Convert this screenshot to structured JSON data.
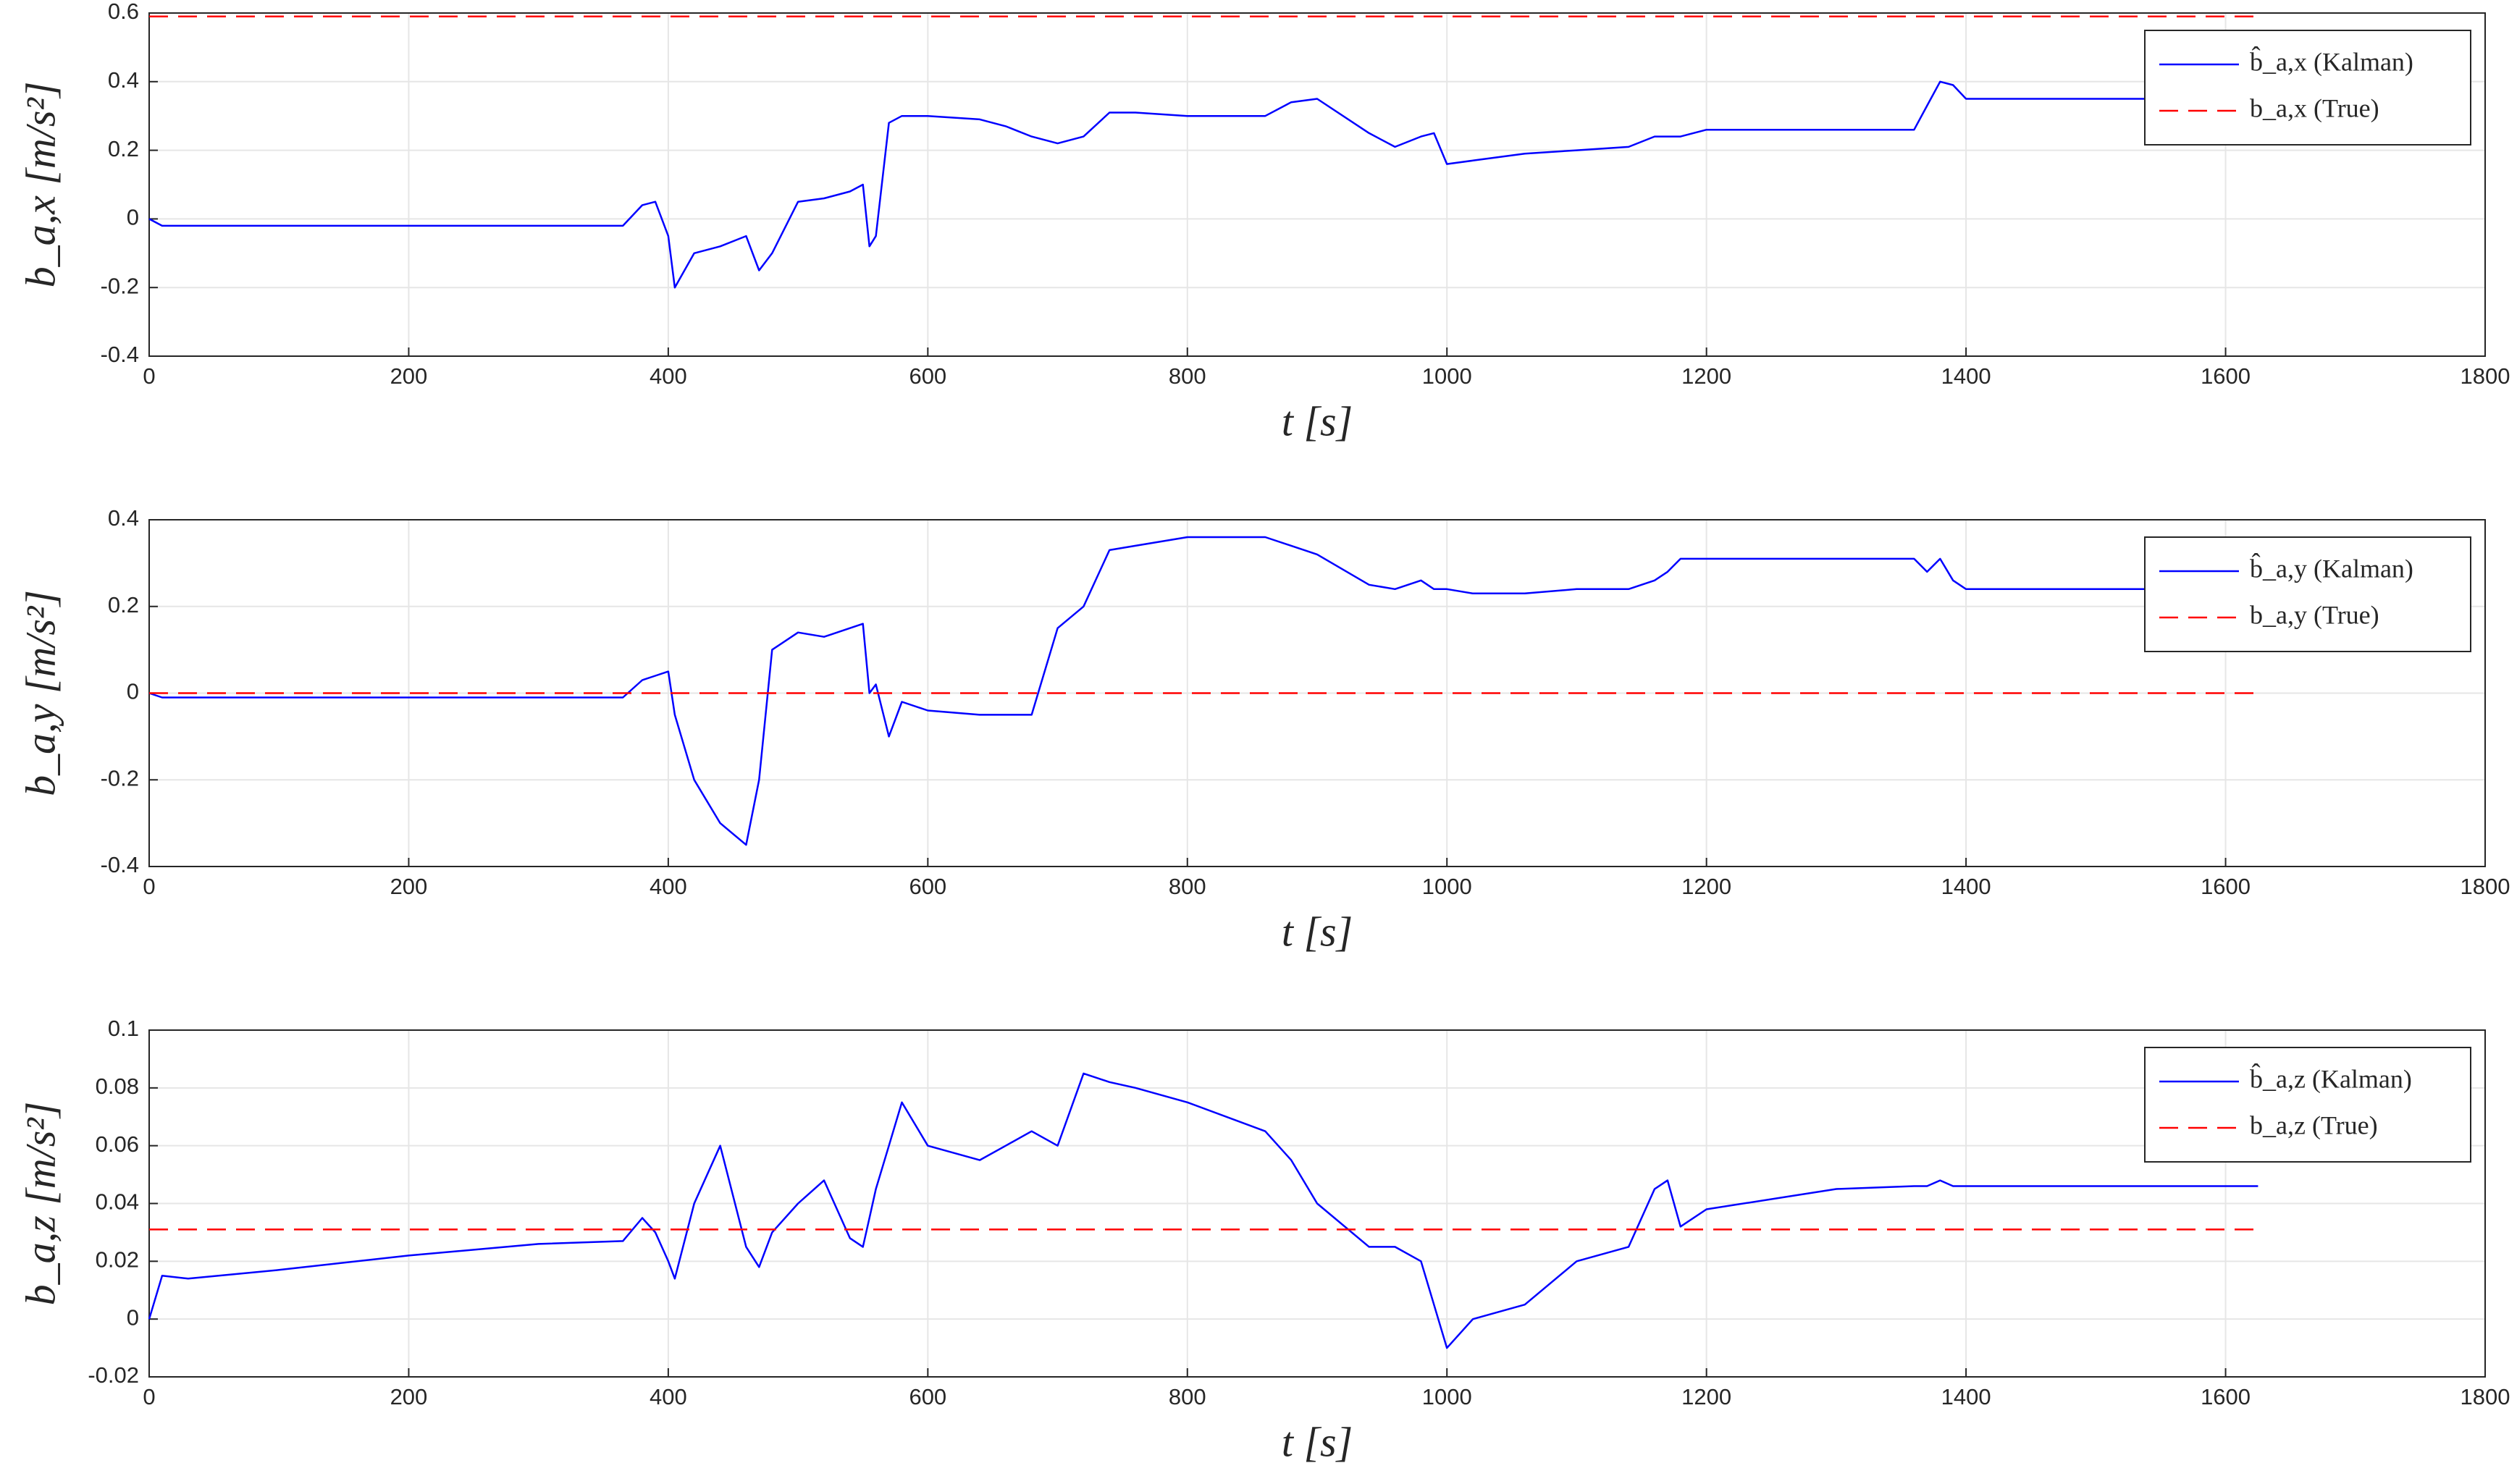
{
  "chart_data": [
    {
      "type": "line",
      "xlabel": "t [s]",
      "ylabel": "b_a,x [m/s²]",
      "xlim": [
        0,
        1800
      ],
      "xticks": [
        0,
        200,
        400,
        600,
        800,
        1000,
        1200,
        1400,
        1600,
        1800
      ],
      "ylim": [
        -0.4,
        0.6
      ],
      "yticks": [
        -0.4,
        -0.2,
        0,
        0.2,
        0.4,
        0.6
      ],
      "grid": true,
      "legend": "northeast",
      "x": [
        0,
        10,
        30,
        100,
        200,
        300,
        365,
        380,
        390,
        400,
        405,
        420,
        440,
        460,
        470,
        480,
        500,
        520,
        540,
        550,
        555,
        560,
        570,
        580,
        600,
        640,
        660,
        680,
        700,
        720,
        740,
        760,
        800,
        860,
        880,
        900,
        940,
        960,
        980,
        990,
        1000,
        1020,
        1060,
        1100,
        1140,
        1160,
        1170,
        1180,
        1200,
        1300,
        1360,
        1370,
        1380,
        1390,
        1400,
        1500,
        1625
      ],
      "series": [
        {
          "name": "b̂_a,x (Kalman)",
          "color": "#0000ff",
          "dash": false,
          "values": [
            0,
            -0.02,
            -0.02,
            -0.02,
            -0.02,
            -0.02,
            -0.02,
            0.04,
            0.05,
            -0.05,
            -0.2,
            -0.1,
            -0.08,
            -0.05,
            -0.15,
            -0.1,
            0.05,
            0.06,
            0.08,
            0.1,
            -0.08,
            -0.05,
            0.28,
            0.3,
            0.3,
            0.29,
            0.27,
            0.24,
            0.22,
            0.24,
            0.31,
            0.31,
            0.3,
            0.3,
            0.34,
            0.35,
            0.25,
            0.21,
            0.24,
            0.25,
            0.16,
            0.17,
            0.19,
            0.2,
            0.21,
            0.24,
            0.24,
            0.24,
            0.26,
            0.26,
            0.26,
            0.33,
            0.4,
            0.39,
            0.35,
            0.35,
            0.35
          ]
        },
        {
          "name": "b_a,x (True)",
          "color": "#ff0000",
          "dash": true,
          "values": [
            0.59,
            0.59,
            0.59,
            0.59,
            0.59,
            0.59,
            0.59,
            0.59,
            0.59,
            0.59,
            0.59,
            0.59,
            0.59,
            0.59,
            0.59,
            0.59,
            0.59,
            0.59,
            0.59,
            0.59,
            0.59,
            0.59,
            0.59,
            0.59,
            0.59,
            0.59,
            0.59,
            0.59,
            0.59,
            0.59,
            0.59,
            0.59,
            0.59,
            0.59,
            0.59,
            0.59,
            0.59,
            0.59,
            0.59,
            0.59,
            0.59,
            0.59,
            0.59,
            0.59,
            0.59,
            0.59,
            0.59,
            0.59,
            0.59,
            0.59,
            0.59,
            0.59,
            0.59,
            0.59,
            0.59,
            0.59,
            0.59
          ]
        }
      ]
    },
    {
      "type": "line",
      "xlabel": "t [s]",
      "ylabel": "b_a,y [m/s²]",
      "xlim": [
        0,
        1800
      ],
      "xticks": [
        0,
        200,
        400,
        600,
        800,
        1000,
        1200,
        1400,
        1600,
        1800
      ],
      "ylim": [
        -0.4,
        0.4
      ],
      "yticks": [
        -0.4,
        -0.2,
        0,
        0.2,
        0.4
      ],
      "grid": true,
      "legend": "northeast",
      "x": [
        0,
        10,
        30,
        100,
        200,
        300,
        365,
        380,
        390,
        400,
        405,
        420,
        440,
        460,
        470,
        480,
        500,
        520,
        540,
        550,
        555,
        560,
        570,
        580,
        600,
        640,
        660,
        680,
        700,
        720,
        740,
        760,
        800,
        860,
        880,
        900,
        940,
        960,
        980,
        990,
        1000,
        1020,
        1060,
        1100,
        1140,
        1160,
        1170,
        1180,
        1200,
        1300,
        1360,
        1370,
        1380,
        1390,
        1400,
        1500,
        1625
      ],
      "series": [
        {
          "name": "b̂_a,y (Kalman)",
          "color": "#0000ff",
          "dash": false,
          "values": [
            0,
            -0.01,
            -0.01,
            -0.01,
            -0.01,
            -0.01,
            -0.01,
            0.03,
            0.04,
            0.05,
            -0.05,
            -0.2,
            -0.3,
            -0.35,
            -0.2,
            0.1,
            0.14,
            0.13,
            0.15,
            0.16,
            0,
            0.02,
            -0.1,
            -0.02,
            -0.04,
            -0.05,
            -0.05,
            -0.05,
            0.15,
            0.2,
            0.33,
            0.34,
            0.36,
            0.36,
            0.34,
            0.32,
            0.25,
            0.24,
            0.26,
            0.24,
            0.24,
            0.23,
            0.23,
            0.24,
            0.24,
            0.26,
            0.28,
            0.31,
            0.31,
            0.31,
            0.31,
            0.28,
            0.31,
            0.26,
            0.24,
            0.24,
            0.24
          ]
        },
        {
          "name": "b_a,y (True)",
          "color": "#ff0000",
          "dash": true,
          "values": [
            0,
            0,
            0,
            0,
            0,
            0,
            0,
            0,
            0,
            0,
            0,
            0,
            0,
            0,
            0,
            0,
            0,
            0,
            0,
            0,
            0,
            0,
            0,
            0,
            0,
            0,
            0,
            0,
            0,
            0,
            0,
            0,
            0,
            0,
            0,
            0,
            0,
            0,
            0,
            0,
            0,
            0,
            0,
            0,
            0,
            0,
            0,
            0,
            0,
            0,
            0,
            0,
            0,
            0,
            0,
            0,
            0
          ]
        }
      ]
    },
    {
      "type": "line",
      "xlabel": "t [s]",
      "ylabel": "b_a,z [m/s²]",
      "xlim": [
        0,
        1800
      ],
      "xticks": [
        0,
        200,
        400,
        600,
        800,
        1000,
        1200,
        1400,
        1600,
        1800
      ],
      "ylim": [
        -0.02,
        0.1
      ],
      "yticks": [
        -0.02,
        0,
        0.02,
        0.04,
        0.06,
        0.08,
        0.1
      ],
      "grid": true,
      "legend": "northeast",
      "x": [
        0,
        10,
        30,
        100,
        200,
        300,
        365,
        380,
        390,
        400,
        405,
        420,
        440,
        460,
        470,
        480,
        500,
        520,
        540,
        550,
        555,
        560,
        570,
        580,
        600,
        640,
        660,
        680,
        700,
        720,
        740,
        760,
        800,
        860,
        880,
        900,
        940,
        960,
        980,
        990,
        1000,
        1020,
        1060,
        1100,
        1140,
        1160,
        1170,
        1180,
        1200,
        1300,
        1360,
        1370,
        1380,
        1390,
        1400,
        1500,
        1625
      ],
      "series": [
        {
          "name": "b̂_a,z (Kalman)",
          "color": "#0000ff",
          "dash": false,
          "values": [
            0,
            0.015,
            0.014,
            0.017,
            0.022,
            0.026,
            0.027,
            0.035,
            0.03,
            0.02,
            0.014,
            0.04,
            0.06,
            0.025,
            0.018,
            0.03,
            0.04,
            0.048,
            0.028,
            0.025,
            0.035,
            0.045,
            0.06,
            0.075,
            0.06,
            0.055,
            0.06,
            0.065,
            0.06,
            0.085,
            0.082,
            0.08,
            0.075,
            0.065,
            0.055,
            0.04,
            0.025,
            0.025,
            0.02,
            0.005,
            -0.01,
            0,
            0.005,
            0.02,
            0.025,
            0.045,
            0.048,
            0.032,
            0.038,
            0.045,
            0.046,
            0.046,
            0.048,
            0.046,
            0.046,
            0.046,
            0.046
          ]
        },
        {
          "name": "b_a,z (True)",
          "color": "#ff0000",
          "dash": true,
          "values": [
            0.031,
            0.031,
            0.031,
            0.031,
            0.031,
            0.031,
            0.031,
            0.031,
            0.031,
            0.031,
            0.031,
            0.031,
            0.031,
            0.031,
            0.031,
            0.031,
            0.031,
            0.031,
            0.031,
            0.031,
            0.031,
            0.031,
            0.031,
            0.031,
            0.031,
            0.031,
            0.031,
            0.031,
            0.031,
            0.031,
            0.031,
            0.031,
            0.031,
            0.031,
            0.031,
            0.031,
            0.031,
            0.031,
            0.031,
            0.031,
            0.031,
            0.031,
            0.031,
            0.031,
            0.031,
            0.031,
            0.031,
            0.031,
            0.031,
            0.031,
            0.031,
            0.031,
            0.031,
            0.031,
            0.031,
            0.031,
            0.031
          ]
        }
      ]
    }
  ]
}
